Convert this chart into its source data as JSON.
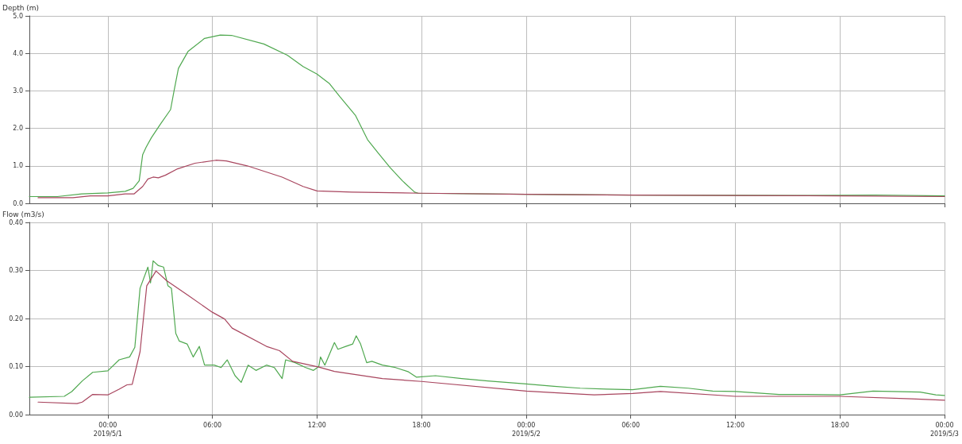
{
  "chart_data": [
    {
      "type": "line",
      "ylabel": "Depth (m)",
      "xlim": [
        "2019-04-30T19:30",
        "2019-05-03T00:00"
      ],
      "ylim": [
        0,
        5
      ],
      "xticks": [
        {
          "value": "2019-05-01T00:00",
          "label": null
        },
        {
          "value": "2019-05-01T06:00",
          "label": null
        },
        {
          "value": "2019-05-01T12:00",
          "label": null
        },
        {
          "value": "2019-05-01T18:00",
          "label": null
        },
        {
          "value": "2019-05-02T00:00",
          "label": null
        },
        {
          "value": "2019-05-02T06:00",
          "label": null
        },
        {
          "value": "2019-05-02T12:00",
          "label": null
        },
        {
          "value": "2019-05-02T18:00",
          "label": null
        },
        {
          "value": "2019-05-03T00:00",
          "label": null
        }
      ],
      "yticks": [
        {
          "value": 0,
          "label": "0.0"
        },
        {
          "value": 1,
          "label": "1.0"
        },
        {
          "value": 2,
          "label": "2.0"
        },
        {
          "value": 3,
          "label": "3.0"
        },
        {
          "value": 4,
          "label": "4.0"
        },
        {
          "value": 5,
          "label": "5.0"
        }
      ],
      "tick_labels": "y",
      "grid": true,
      "marker": "none",
      "line_style": "solid",
      "series": [
        {
          "color": "#4fa84f",
          "x": [
            "2019-04-30T19:30",
            "2019-04-30T21:06",
            "2019-04-30T22:30",
            "2019-05-01T00:00",
            "2019-05-01T01:00",
            "2019-05-01T01:27",
            "2019-05-01T01:48",
            "2019-05-01T02:00",
            "2019-05-01T02:12",
            "2019-05-01T02:30",
            "2019-05-01T03:00",
            "2019-05-01T03:36",
            "2019-05-01T03:48",
            "2019-05-01T04:03",
            "2019-05-01T04:36",
            "2019-05-01T05:33",
            "2019-05-01T06:27",
            "2019-05-01T07:06",
            "2019-05-01T08:57",
            "2019-05-01T10:18",
            "2019-05-01T11:12",
            "2019-05-01T12:00",
            "2019-05-01T12:42",
            "2019-05-01T13:18",
            "2019-05-01T14:12",
            "2019-05-01T14:54",
            "2019-05-01T15:30",
            "2019-05-01T16:12",
            "2019-05-01T16:54",
            "2019-05-01T17:36",
            "2019-05-01T17:48",
            "2019-05-02T00:00",
            "2019-05-02T06:18",
            "2019-05-02T15:24",
            "2019-05-02T20:00",
            "2019-05-03T00:00"
          ],
          "values": [
            0.18,
            0.18,
            0.25,
            0.28,
            0.32,
            0.4,
            0.6,
            1.3,
            1.5,
            1.75,
            2.1,
            2.5,
            3.0,
            3.6,
            4.05,
            4.4,
            4.49,
            4.48,
            4.25,
            3.95,
            3.65,
            3.45,
            3.2,
            2.85,
            2.35,
            1.7,
            1.35,
            0.95,
            0.6,
            0.3,
            0.27,
            0.24,
            0.22,
            0.21,
            0.22,
            0.2
          ]
        },
        {
          "color": "#a8455e",
          "x": [
            "2019-04-30T20:00",
            "2019-04-30T22:00",
            "2019-04-30T23:00",
            "2019-05-01T00:00",
            "2019-05-01T01:00",
            "2019-05-01T01:30",
            "2019-05-01T02:00",
            "2019-05-01T02:18",
            "2019-05-01T02:36",
            "2019-05-01T02:54",
            "2019-05-01T03:18",
            "2019-05-01T04:00",
            "2019-05-01T05:00",
            "2019-05-01T06:12",
            "2019-05-01T06:48",
            "2019-05-01T08:00",
            "2019-05-01T10:00",
            "2019-05-01T11:12",
            "2019-05-01T12:00",
            "2019-05-01T14:00",
            "2019-05-01T18:00",
            "2019-05-02T00:00",
            "2019-05-02T06:00",
            "2019-05-02T12:00",
            "2019-05-02T18:00",
            "2019-05-03T00:00"
          ],
          "values": [
            0.15,
            0.15,
            0.2,
            0.2,
            0.25,
            0.25,
            0.45,
            0.65,
            0.7,
            0.68,
            0.75,
            0.92,
            1.07,
            1.15,
            1.13,
            1.0,
            0.7,
            0.45,
            0.33,
            0.3,
            0.27,
            0.24,
            0.22,
            0.21,
            0.2,
            0.18
          ]
        }
      ]
    },
    {
      "type": "line",
      "ylabel": "Flow (m3/s)",
      "xlim": [
        "2019-04-30T19:30",
        "2019-05-03T00:00"
      ],
      "ylim": [
        0,
        0.4
      ],
      "xticks": [
        {
          "value": "2019-05-01T00:00",
          "label": "00:00\n2019/5/1"
        },
        {
          "value": "2019-05-01T06:00",
          "label": "06:00"
        },
        {
          "value": "2019-05-01T12:00",
          "label": "12:00"
        },
        {
          "value": "2019-05-01T18:00",
          "label": "18:00"
        },
        {
          "value": "2019-05-02T00:00",
          "label": "00:00\n2019/5/2"
        },
        {
          "value": "2019-05-02T06:00",
          "label": "06:00"
        },
        {
          "value": "2019-05-02T12:00",
          "label": "12:00"
        },
        {
          "value": "2019-05-02T18:00",
          "label": "18:00"
        },
        {
          "value": "2019-05-03T00:00",
          "label": "00:00\n2019/5/3"
        }
      ],
      "yticks": [
        {
          "value": 0,
          "label": "0.00"
        },
        {
          "value": 0.1,
          "label": "0.10"
        },
        {
          "value": 0.2,
          "label": "0.20"
        },
        {
          "value": 0.3,
          "label": "0.30"
        },
        {
          "value": 0.4,
          "label": "0.40"
        }
      ],
      "grid": true,
      "marker": "none",
      "line_style": "solid",
      "series": [
        {
          "color": "#4fa84f",
          "x": [
            "2019-04-30T19:30",
            "2019-04-30T21:30",
            "2019-04-30T21:56",
            "2019-04-30T22:32",
            "2019-04-30T23:08",
            "2019-05-01T00:00",
            "2019-05-01T00:39",
            "2019-05-01T01:15",
            "2019-05-01T01:33",
            "2019-05-01T01:51",
            "2019-05-01T02:18",
            "2019-05-01T02:27",
            "2019-05-01T02:36",
            "2019-05-01T02:54",
            "2019-05-01T03:12",
            "2019-05-01T03:27",
            "2019-05-01T03:39",
            "2019-05-01T03:54",
            "2019-05-01T04:06",
            "2019-05-01T04:33",
            "2019-05-01T04:54",
            "2019-05-01T05:15",
            "2019-05-01T05:33",
            "2019-05-01T06:06",
            "2019-05-01T06:30",
            "2019-05-01T06:51",
            "2019-05-01T07:18",
            "2019-05-01T07:39",
            "2019-05-01T08:03",
            "2019-05-01T08:30",
            "2019-05-01T09:06",
            "2019-05-01T09:33",
            "2019-05-01T10:00",
            "2019-05-01T10:12",
            "2019-05-01T10:45",
            "2019-05-01T11:21",
            "2019-05-01T11:48",
            "2019-05-01T12:06",
            "2019-05-01T12:12",
            "2019-05-01T12:27",
            "2019-05-01T13:00",
            "2019-05-01T13:12",
            "2019-05-01T13:39",
            "2019-05-01T14:03",
            "2019-05-01T14:15",
            "2019-05-01T14:30",
            "2019-05-01T14:51",
            "2019-05-01T15:09",
            "2019-05-01T15:45",
            "2019-05-01T16:30",
            "2019-05-01T17:15",
            "2019-05-01T17:42",
            "2019-05-01T18:48",
            "2019-05-01T20:18",
            "2019-05-01T21:48",
            "2019-05-02T00:00",
            "2019-05-02T01:36",
            "2019-05-02T03:06",
            "2019-05-02T04:36",
            "2019-05-02T06:06",
            "2019-05-02T07:42",
            "2019-05-02T09:18",
            "2019-05-02T10:42",
            "2019-05-02T12:00",
            "2019-05-02T14:30",
            "2019-05-02T16:00",
            "2019-05-02T18:00",
            "2019-05-02T19:54",
            "2019-05-02T22:36",
            "2019-05-02T23:30",
            "2019-05-03T00:00"
          ],
          "values": [
            0.036,
            0.038,
            0.048,
            0.07,
            0.088,
            0.091,
            0.114,
            0.12,
            0.14,
            0.263,
            0.307,
            0.274,
            0.32,
            0.31,
            0.307,
            0.268,
            0.263,
            0.169,
            0.153,
            0.147,
            0.12,
            0.142,
            0.103,
            0.103,
            0.098,
            0.114,
            0.081,
            0.067,
            0.103,
            0.092,
            0.103,
            0.098,
            0.075,
            0.114,
            0.108,
            0.098,
            0.092,
            0.1,
            0.12,
            0.103,
            0.15,
            0.136,
            0.142,
            0.147,
            0.164,
            0.147,
            0.108,
            0.111,
            0.103,
            0.098,
            0.089,
            0.078,
            0.081,
            0.075,
            0.07,
            0.064,
            0.059,
            0.055,
            0.053,
            0.052,
            0.059,
            0.055,
            0.049,
            0.048,
            0.042,
            0.042,
            0.041,
            0.049,
            0.047,
            0.041,
            0.04
          ]
        },
        {
          "color": "#a8455e",
          "x": [
            "2019-04-30T20:00",
            "2019-04-30T22:14",
            "2019-04-30T22:32",
            "2019-04-30T23:08",
            "2019-05-01T00:00",
            "2019-05-01T00:39",
            "2019-05-01T01:06",
            "2019-05-01T01:24",
            "2019-05-01T01:51",
            "2019-05-01T02:14",
            "2019-05-01T02:46",
            "2019-05-01T03:22",
            "2019-05-01T04:34",
            "2019-05-01T06:00",
            "2019-05-01T06:42",
            "2019-05-01T07:08",
            "2019-05-01T09:06",
            "2019-05-01T09:51",
            "2019-05-01T10:36",
            "2019-05-01T12:06",
            "2019-05-01T13:00",
            "2019-05-01T15:45",
            "2019-05-01T18:00",
            "2019-05-02T00:00",
            "2019-05-02T02:24",
            "2019-05-02T03:54",
            "2019-05-02T06:06",
            "2019-05-02T07:42",
            "2019-05-02T12:00",
            "2019-05-02T18:00",
            "2019-05-02T22:06",
            "2019-05-03T00:00"
          ],
          "values": [
            0.026,
            0.023,
            0.026,
            0.042,
            0.041,
            0.053,
            0.062,
            0.063,
            0.131,
            0.268,
            0.299,
            0.279,
            0.249,
            0.213,
            0.199,
            0.18,
            0.142,
            0.133,
            0.111,
            0.099,
            0.09,
            0.075,
            0.069,
            0.049,
            0.044,
            0.041,
            0.044,
            0.048,
            0.038,
            0.038,
            0.033,
            0.03
          ]
        }
      ]
    }
  ]
}
